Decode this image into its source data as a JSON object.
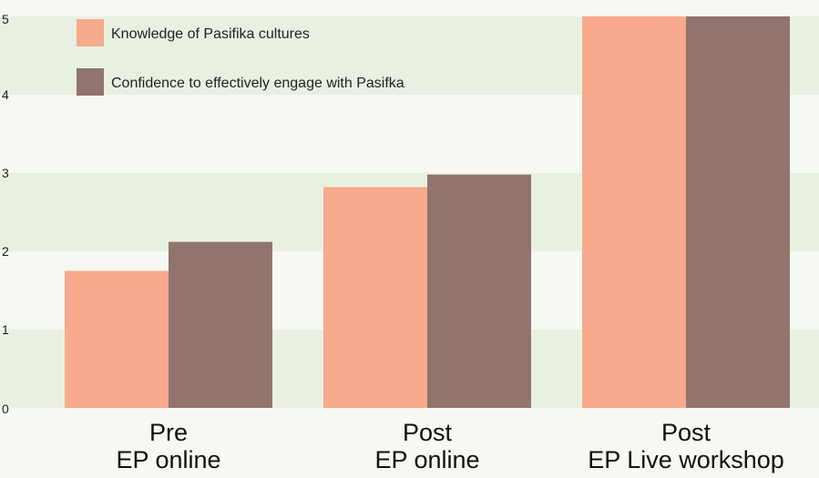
{
  "chart_data": {
    "type": "bar",
    "categories": [
      [
        "Pre",
        "EP online"
      ],
      [
        "Post",
        "EP online"
      ],
      [
        "Post",
        "EP Live workshop"
      ]
    ],
    "series": [
      {
        "name": "Knowledge of Pasifika cultures",
        "values": [
          1.75,
          2.82,
          5.0
        ],
        "color": "#f7aa8c"
      },
      {
        "name": "Confidence to effectively engage with Pasifka",
        "values": [
          2.12,
          2.98,
          5.0
        ],
        "color": "#91746e"
      }
    ],
    "ylim": [
      0,
      5
    ],
    "yticks": [
      0,
      1,
      2,
      3,
      4,
      5
    ],
    "grid": "alternating horizontal bands",
    "legend": "top-left",
    "band_colors": [
      "#e8f1e1",
      "#f7f8f2"
    ]
  }
}
